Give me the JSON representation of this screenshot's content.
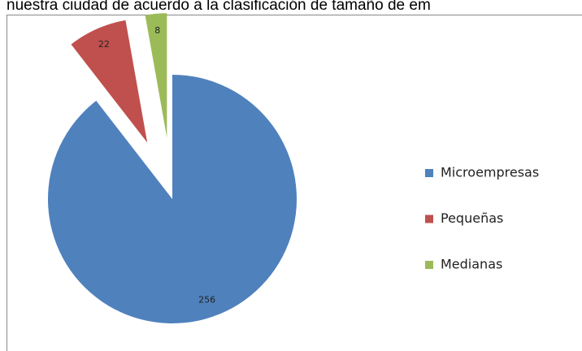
{
  "caption": "nuestra ciudad de acuerdo a la clasificación de tamaño de em",
  "chart_data": {
    "type": "pie",
    "categories": [
      "Microempresas",
      "Pequeñas",
      "Medianas"
    ],
    "values": [
      256,
      22,
      8
    ],
    "colors": [
      "#4f81bd",
      "#c0504d",
      "#9bbb59"
    ],
    "legend": "right"
  }
}
